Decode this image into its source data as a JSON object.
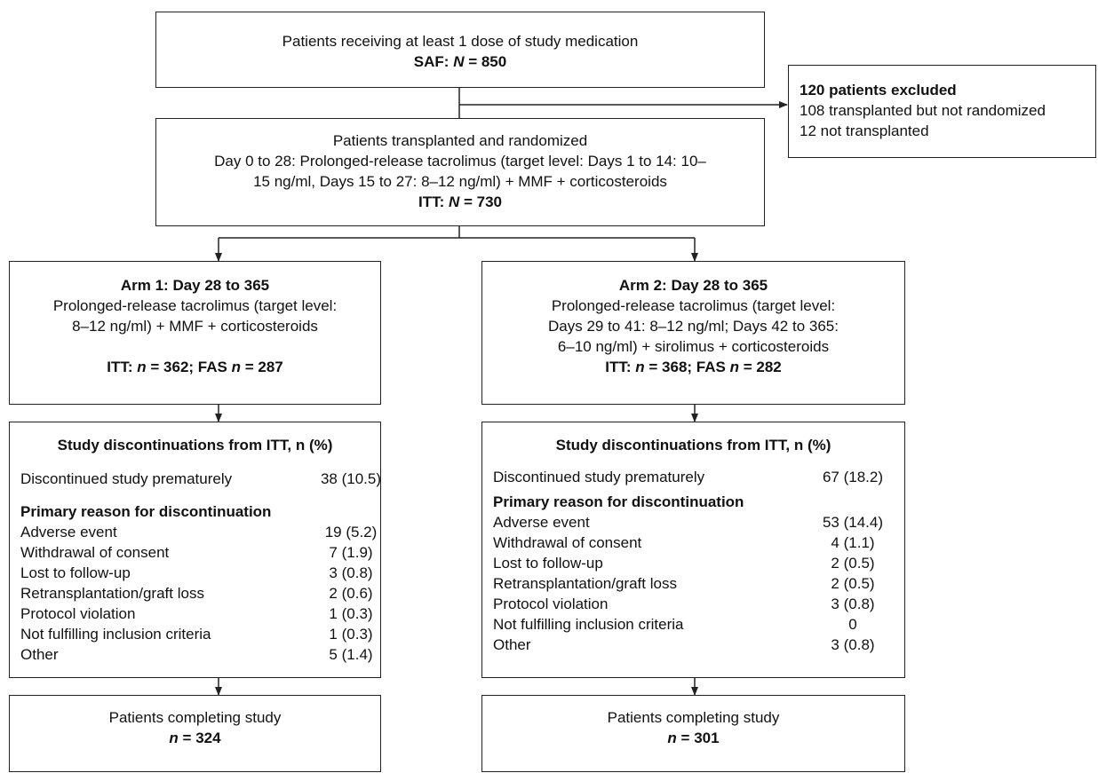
{
  "screening": {
    "lines": [
      "Patients receiving at least 1 dose of study medication"
    ],
    "population": [
      "SAF:",
      {
        "text": "N",
        "style": "italic"
      },
      "= 850"
    ]
  },
  "excluded": {
    "title": "120 patients excluded",
    "lines": [
      "108 transplanted but not randomized",
      "12 not transplanted"
    ]
  },
  "randomized": {
    "lines": [
      "Patients transplanted and randomized",
      "Day 0 to 28: Prolonged-release tacrolimus (target level: Days 1 to 14: 10–",
      "15 ng/ml, Days 15 to 27: 8–12 ng/ml) + MMF + corticosteroids"
    ],
    "population": [
      "ITT:",
      {
        "text": "N",
        "style": "italic"
      },
      "= 730"
    ]
  },
  "arms": [
    {
      "title": "Arm 1: Day 28 to 365",
      "lines": [
        "Prolonged-release tacrolimus (target level:",
        "8–12 ng/ml) + MMF + corticosteroids"
      ],
      "population": [
        "ITT:",
        {
          "text": "n",
          "style": "italic"
        },
        "= 362; FAS",
        {
          "text": "n",
          "style": "italic"
        },
        "= 287"
      ],
      "discontinuation": {
        "header": "Study discontinuations from ITT, n (%)",
        "total": {
          "label": "Discontinued study prematurely",
          "value": "38 (10.5)"
        },
        "reason_header": "Primary reason for discontinuation",
        "rows": [
          {
            "label": "Adverse event",
            "value": "19 (5.2)"
          },
          {
            "label": "Withdrawal of consent",
            "value": "7 (1.9)"
          },
          {
            "label": "Lost to follow-up",
            "value": "3 (0.8)"
          },
          {
            "label": "Retransplantation/graft loss",
            "value": "2 (0.6)"
          },
          {
            "label": "Protocol violation",
            "value": "1 (0.3)"
          },
          {
            "label": "Not fulfilling inclusion criteria",
            "value": "1 (0.3)"
          },
          {
            "label": "Other",
            "value": "5 (1.4)"
          }
        ]
      },
      "completing": {
        "label": "Patients completing study",
        "population": [
          {
            "text": "n",
            "style": "italic"
          },
          "= 324"
        ]
      }
    },
    {
      "title": "Arm 2: Day 28 to 365",
      "lines": [
        "Prolonged-release tacrolimus (target level:",
        "Days 29 to 41: 8–12 ng/ml; Days 42 to 365:",
        "6–10 ng/ml) + sirolimus + corticosteroids"
      ],
      "population": [
        "ITT:",
        {
          "text": "n",
          "style": "italic"
        },
        "= 368; FAS",
        {
          "text": "n",
          "style": "italic"
        },
        "= 282"
      ],
      "discontinuation": {
        "header": "Study discontinuations from ITT, n (%)",
        "total": {
          "label": "Discontinued study prematurely",
          "value": "67 (18.2)"
        },
        "reason_header": "Primary reason for discontinuation",
        "rows": [
          {
            "label": "Adverse event",
            "value": "53 (14.4)"
          },
          {
            "label": "Withdrawal of consent",
            "value": "4 (1.1)"
          },
          {
            "label": "Lost to follow-up",
            "value": "2 (0.5)"
          },
          {
            "label": "Retransplantation/graft loss",
            "value": "2 (0.5)"
          },
          {
            "label": "Protocol violation",
            "value": "3 (0.8)"
          },
          {
            "label": "Not fulfilling inclusion criteria",
            "value": "0"
          },
          {
            "label": "Other",
            "value": "3 (0.8)"
          }
        ]
      },
      "completing": {
        "label": "Patients completing study",
        "population": [
          {
            "text": "n",
            "style": "italic"
          },
          "= 301"
        ]
      }
    }
  ]
}
